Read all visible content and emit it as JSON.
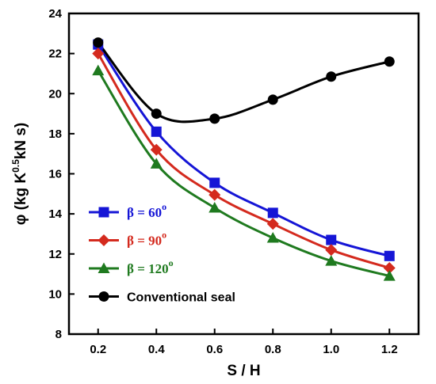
{
  "chart_data": {
    "type": "line",
    "title": "",
    "xlabel": "S / H",
    "ylabel": {
      "main": "φ (kg K",
      "sup": "0.5",
      "tail": "kN s)"
    },
    "xlim": [
      0.1,
      1.3
    ],
    "ylim": [
      8,
      24
    ],
    "xticks": [
      "0.2",
      "0.4",
      "0.6",
      "0.8",
      "1.0",
      "1.2"
    ],
    "yticks": [
      "8",
      "10",
      "12",
      "14",
      "16",
      "18",
      "20",
      "22",
      "24"
    ],
    "grid": false,
    "legend_position": "lower-left",
    "x": [
      0.2,
      0.4,
      0.6,
      0.8,
      1.0,
      1.2
    ],
    "series": [
      {
        "name": "β = 60",
        "name_sup": "o",
        "color": "#1515d6",
        "marker": "square",
        "values": [
          22.45,
          18.1,
          15.55,
          14.05,
          12.7,
          11.9
        ]
      },
      {
        "name": "β = 90",
        "name_sup": "o",
        "color": "#d42a1e",
        "marker": "diamond",
        "values": [
          22.0,
          17.2,
          14.95,
          13.5,
          12.2,
          11.3
        ]
      },
      {
        "name": "β = 120",
        "name_sup": "o",
        "color": "#1f7a1f",
        "marker": "triangle",
        "values": [
          21.15,
          16.5,
          14.3,
          12.8,
          11.65,
          10.9
        ]
      },
      {
        "name": "Conventional seal",
        "name_sup": "",
        "color": "#000000",
        "marker": "circle",
        "values": [
          22.55,
          19.0,
          18.75,
          19.7,
          20.85,
          21.6
        ]
      }
    ]
  }
}
